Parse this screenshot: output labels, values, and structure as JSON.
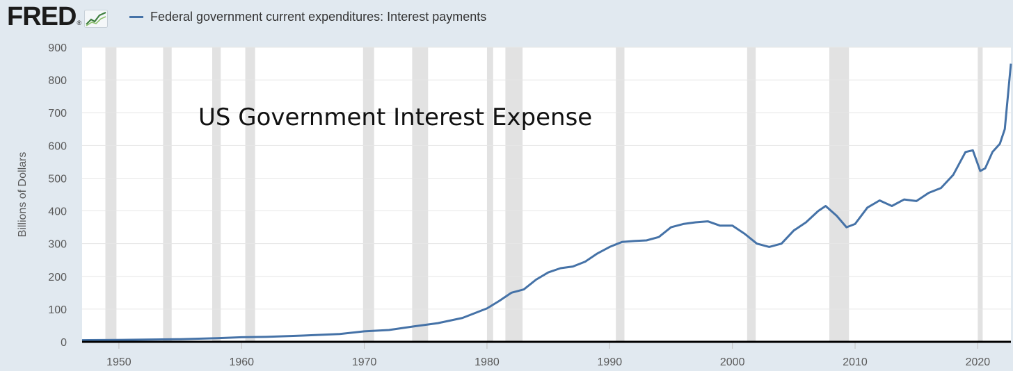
{
  "header": {
    "logo_text": "FRED",
    "logo_reg": "®",
    "logo_icon": "line-graph-icon"
  },
  "colors": {
    "background": "#e1e9f0",
    "plot_background": "#ffffff",
    "series": "#4572a7",
    "recession": "#e2e2e2",
    "grid": "#e6e6e6",
    "baseline": "#000000"
  },
  "chart_data": {
    "type": "line",
    "title": "",
    "annotation": "US Government Interest Expense",
    "xlabel": "",
    "ylabel": "Billions of Dollars",
    "xlim": [
      1947,
      2022.7
    ],
    "ylim": [
      0,
      900
    ],
    "yticks": [
      0,
      100,
      200,
      300,
      400,
      500,
      600,
      700,
      800,
      900
    ],
    "xticks": [
      1950,
      1960,
      1970,
      1980,
      1990,
      2000,
      2010,
      2020
    ],
    "grid": true,
    "legend": "top-left",
    "recessions": [
      [
        1948.9,
        1949.8
      ],
      [
        1953.6,
        1954.3
      ],
      [
        1957.6,
        1958.3
      ],
      [
        1960.3,
        1961.1
      ],
      [
        1969.9,
        1970.8
      ],
      [
        1973.9,
        1975.2
      ],
      [
        1980.0,
        1980.5
      ],
      [
        1981.5,
        1982.9
      ],
      [
        1990.5,
        1991.2
      ],
      [
        2001.2,
        2001.9
      ],
      [
        2007.9,
        2009.5
      ],
      [
        2020.0,
        2020.4
      ]
    ],
    "series": [
      {
        "name": "Federal government current expenditures: Interest payments",
        "x": [
          1947,
          1950,
          1955,
          1958,
          1960,
          1962,
          1965,
          1968,
          1970,
          1972,
          1974,
          1976,
          1978,
          1980,
          1981,
          1982,
          1983,
          1984,
          1985,
          1986,
          1987,
          1988,
          1989,
          1990,
          1991,
          1992,
          1993,
          1994,
          1995,
          1996,
          1997,
          1998,
          1999,
          2000,
          2001,
          2002,
          2003,
          2004,
          2005,
          2006,
          2007,
          2007.6,
          2008.5,
          2009.3,
          2010,
          2011,
          2012,
          2013,
          2014,
          2015,
          2016,
          2017,
          2018,
          2019,
          2019.6,
          2020.2,
          2020.6,
          2021.2,
          2021.8,
          2022.2,
          2022.7
        ],
        "values": [
          5,
          6,
          8,
          11,
          14,
          15,
          19,
          24,
          32,
          36,
          47,
          57,
          73,
          102,
          125,
          150,
          160,
          190,
          212,
          225,
          230,
          245,
          270,
          290,
          305,
          308,
          310,
          320,
          350,
          360,
          365,
          368,
          355,
          355,
          330,
          300,
          290,
          300,
          340,
          365,
          400,
          415,
          385,
          350,
          360,
          410,
          432,
          415,
          435,
          430,
          455,
          470,
          510,
          580,
          585,
          522,
          530,
          580,
          605,
          650,
          850
        ]
      }
    ]
  }
}
